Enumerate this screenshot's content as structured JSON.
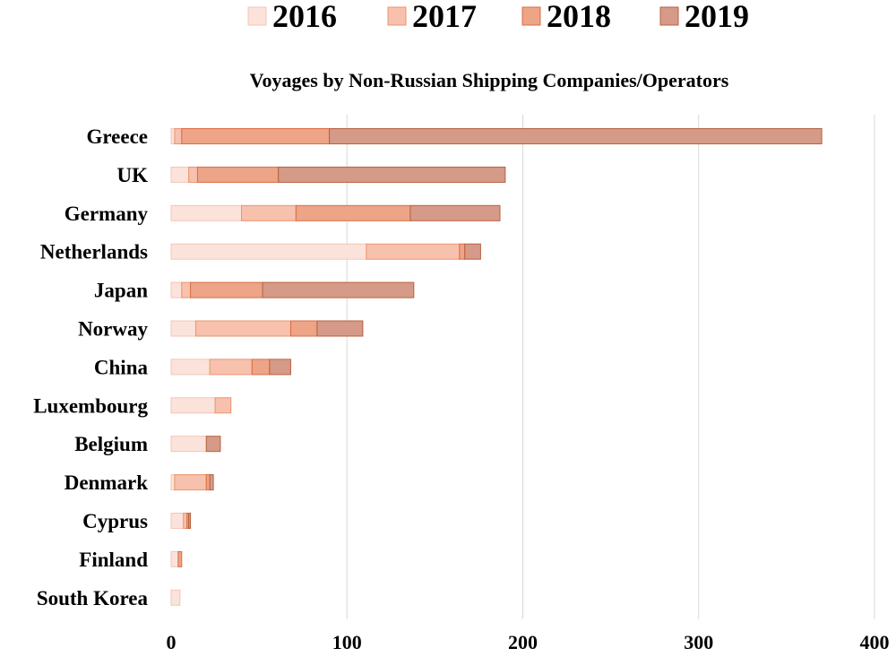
{
  "chart_data": {
    "type": "bar",
    "orientation": "horizontal",
    "stacked": true,
    "title": "Voyages by Non-Russian Shipping Companies/Operators",
    "xlabel": "",
    "ylabel": "",
    "xlim": [
      0,
      400
    ],
    "x_ticks": [
      0,
      100,
      200,
      300,
      400
    ],
    "x_tick_labels": [
      "0",
      "100",
      "200",
      "300",
      "400"
    ],
    "grid": "vertical",
    "legend_position": "top",
    "categories": [
      "Greece",
      "UK",
      "Germany",
      "Netherlands",
      "Japan",
      "Norway",
      "China",
      "Luxembourg",
      "Belgium",
      "Denmark",
      "Cyprus",
      "Finland",
      "South Korea"
    ],
    "series": [
      {
        "name": "2016",
        "color": "#fbe3db",
        "stroke": "#f3c6b5",
        "values": [
          2,
          10,
          40,
          111,
          6,
          14,
          22,
          25,
          20,
          2,
          7,
          4,
          5
        ]
      },
      {
        "name": "2017",
        "color": "#f7c1ad",
        "stroke": "#e9956f",
        "values": [
          4,
          5,
          31,
          53,
          5,
          54,
          24,
          9,
          0,
          18,
          2,
          0,
          0
        ]
      },
      {
        "name": "2018",
        "color": "#eda487",
        "stroke": "#d96e43",
        "values": [
          84,
          46,
          65,
          3,
          41,
          15,
          10,
          0,
          0,
          2,
          1,
          2,
          0
        ]
      },
      {
        "name": "2019",
        "color": "#d59a88",
        "stroke": "#b86240",
        "values": [
          280,
          129,
          51,
          9,
          86,
          26,
          12,
          0,
          8,
          2,
          1,
          0,
          0
        ]
      }
    ]
  }
}
